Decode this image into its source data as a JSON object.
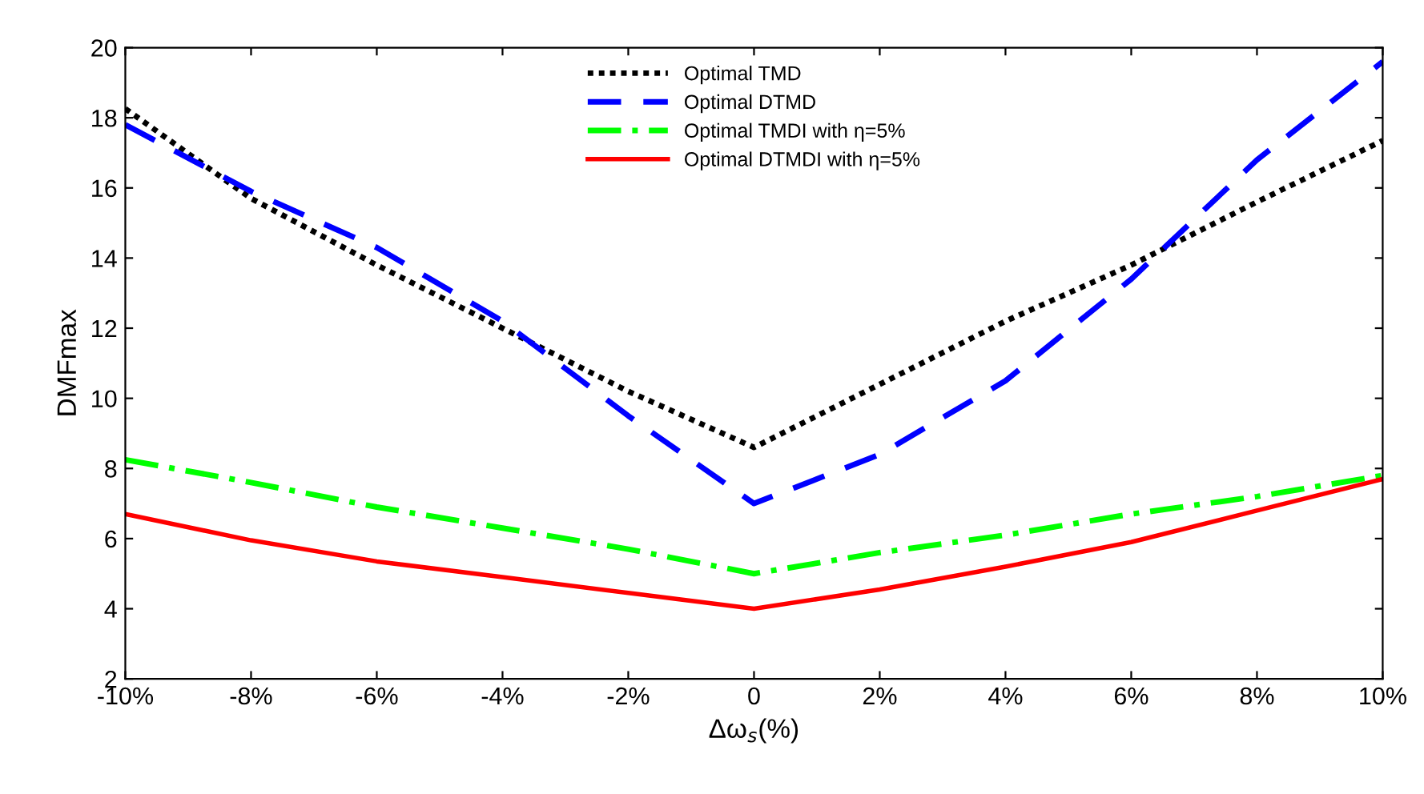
{
  "chart_data": {
    "type": "line",
    "xlabel": "Δω$_{s}$(%)",
    "ylabel": "DMFmax",
    "x": [
      -10,
      -8,
      -6,
      -4,
      -2,
      0,
      2,
      4,
      6,
      8,
      10
    ],
    "xlim": [
      -10,
      10
    ],
    "xticks": [
      {
        "value": -10,
        "label": "-10%"
      },
      {
        "value": -8,
        "label": "-8%"
      },
      {
        "value": -6,
        "label": "-6%"
      },
      {
        "value": -4,
        "label": "-4%"
      },
      {
        "value": -2,
        "label": "-2%"
      },
      0,
      {
        "value": 2,
        "label": "2%"
      },
      {
        "value": 4,
        "label": "4%"
      },
      {
        "value": 6,
        "label": "6%"
      },
      {
        "value": 8,
        "label": "8%"
      },
      {
        "value": 10,
        "label": "10%"
      }
    ],
    "ylim": [
      2,
      20
    ],
    "yticks": [
      2,
      4,
      6,
      8,
      10,
      12,
      14,
      16,
      18,
      20
    ],
    "grid": false,
    "legend": "top",
    "marker": "none",
    "series": [
      {
        "name": "Optimal TMD",
        "color": "#000000",
        "line_style": "dotted",
        "values": [
          18.26,
          15.7,
          13.8,
          12.0,
          10.2,
          8.6,
          10.4,
          12.2,
          13.8,
          15.6,
          17.35
        ]
      },
      {
        "name": "Optimal DTMD",
        "color": "#0000ff",
        "line_style": "dashed",
        "values": [
          17.8,
          15.9,
          14.3,
          12.2,
          9.5,
          7.0,
          8.4,
          10.5,
          13.4,
          16.8,
          19.6
        ]
      },
      {
        "name": "Optimal TMDI with η=5%",
        "color": "#00ff00",
        "line_style": "dashdot",
        "values": [
          8.25,
          7.6,
          6.9,
          6.3,
          5.7,
          5.0,
          5.6,
          6.1,
          6.7,
          7.2,
          7.8
        ]
      },
      {
        "name": "Optimal DTMDI with η=5%",
        "color": "#ff0000",
        "line_style": "solid",
        "values": [
          6.7,
          5.95,
          5.35,
          4.9,
          4.45,
          4.0,
          4.55,
          5.2,
          5.9,
          6.8,
          7.7
        ]
      }
    ]
  }
}
